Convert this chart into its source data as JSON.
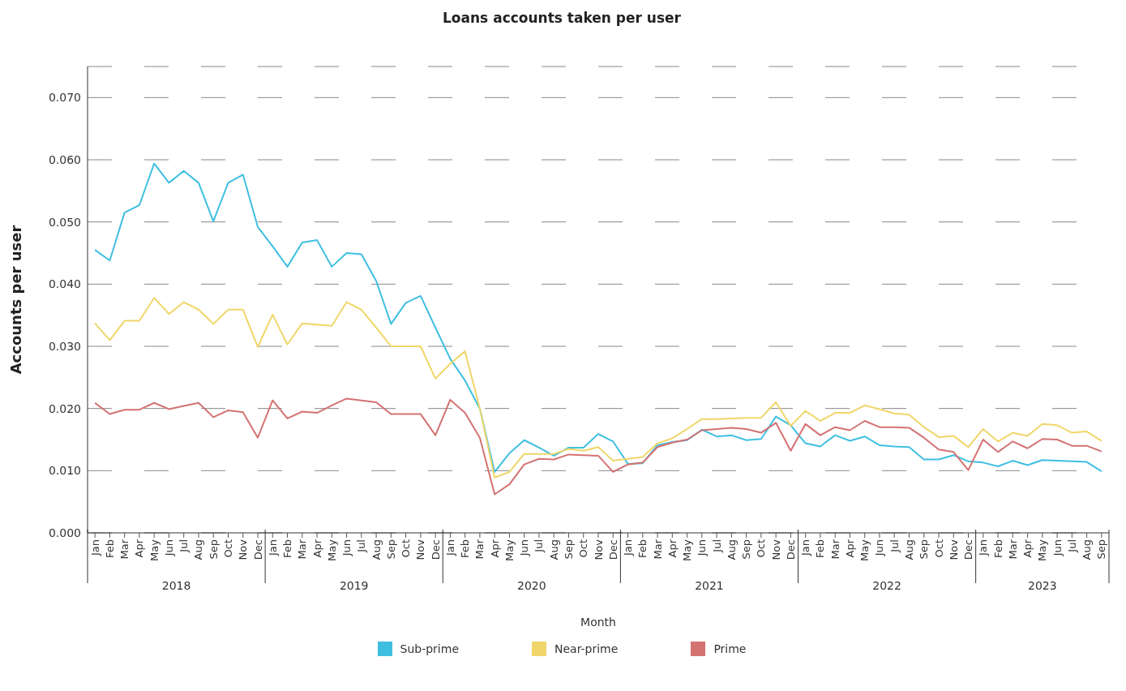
{
  "chart_data": {
    "type": "line",
    "title": "Loans accounts taken per user",
    "xlabel": "Month",
    "ylabel": "Accounts per user",
    "categories": [
      "Jan",
      "Feb",
      "Mar",
      "Apr",
      "May",
      "Jun",
      "Jul",
      "Aug",
      "Sep",
      "Oct",
      "Nov",
      "Dec",
      "Jan",
      "Feb",
      "Mar",
      "Apr",
      "May",
      "Jun",
      "Jul",
      "Aug",
      "Sep",
      "Oct",
      "Nov",
      "Dec",
      "Jan",
      "Feb",
      "Mar",
      "Apr",
      "May",
      "Jun",
      "Jul",
      "Aug",
      "Sep",
      "Oct",
      "Nov",
      "Dec",
      "Jan",
      "Feb",
      "Mar",
      "Apr",
      "May",
      "Jun",
      "Jul",
      "Aug",
      "Sep",
      "Oct",
      "Nov",
      "Dec",
      "Jan",
      "Feb",
      "Mar",
      "Apr",
      "May",
      "Jun",
      "Jul",
      "Aug",
      "Sep",
      "Oct",
      "Nov",
      "Dec",
      "Jan",
      "Feb",
      "Mar",
      "Apr",
      "May",
      "Jun",
      "Jul",
      "Aug",
      "Sep"
    ],
    "annotations": [
      "2018",
      "2019",
      "2020",
      "2021",
      "2022",
      "2023"
    ],
    "series": [
      {
        "name": "Sub-prime",
        "color": "#3fbfe0",
        "values": [
          0.0455,
          0.0438,
          0.0515,
          0.0527,
          0.0594,
          0.0563,
          0.0582,
          0.0563,
          0.0501,
          0.0563,
          0.0576,
          0.0492,
          0.0461,
          0.0428,
          0.0467,
          0.0471,
          0.0428,
          0.045,
          0.0448,
          0.0405,
          0.0336,
          0.037,
          0.0381,
          0.033,
          0.028,
          0.0245,
          0.02,
          0.0098,
          0.0128,
          0.0149,
          0.0137,
          0.0124,
          0.0137,
          0.0137,
          0.0159,
          0.0147,
          0.0111,
          0.0112,
          0.0141,
          0.0146,
          0.0149,
          0.0166,
          0.0155,
          0.0157,
          0.0149,
          0.0151,
          0.0187,
          0.0173,
          0.0144,
          0.0139,
          0.0157,
          0.0148,
          0.0155,
          0.0141,
          0.0139,
          0.0138,
          0.0118,
          0.0118,
          0.0125,
          0.0115,
          0.0113,
          0.0107,
          0.0116,
          0.0109,
          0.0117,
          0.0116,
          0.0115,
          0.0114,
          0.0099
        ]
      },
      {
        "name": "Near-prime",
        "color": "#f0d66a",
        "values": [
          0.0337,
          0.031,
          0.0341,
          0.0341,
          0.0378,
          0.0352,
          0.0371,
          0.0359,
          0.0336,
          0.0359,
          0.0359,
          0.0299,
          0.0351,
          0.0303,
          0.0337,
          0.0335,
          0.0333,
          0.0371,
          0.0359,
          0.033,
          0.03,
          0.03,
          0.03,
          0.0248,
          0.0272,
          0.0292,
          0.02,
          0.0089,
          0.0098,
          0.0127,
          0.0127,
          0.0127,
          0.0135,
          0.0132,
          0.0138,
          0.0116,
          0.0119,
          0.0122,
          0.0144,
          0.0152,
          0.0167,
          0.0183,
          0.0183,
          0.0184,
          0.0185,
          0.0185,
          0.021,
          0.0172,
          0.0196,
          0.018,
          0.0193,
          0.0193,
          0.0205,
          0.0199,
          0.0192,
          0.019,
          0.017,
          0.0154,
          0.0156,
          0.0138,
          0.0167,
          0.0147,
          0.0161,
          0.0156,
          0.0175,
          0.0173,
          0.0161,
          0.0163,
          0.0148
        ]
      },
      {
        "name": "Prime",
        "color": "#d47272",
        "values": [
          0.0209,
          0.0191,
          0.0198,
          0.0198,
          0.0209,
          0.0199,
          0.0204,
          0.0209,
          0.0186,
          0.0197,
          0.0194,
          0.0153,
          0.0213,
          0.0184,
          0.0195,
          0.0193,
          0.0205,
          0.0216,
          0.0213,
          0.021,
          0.0191,
          0.0191,
          0.0191,
          0.0157,
          0.0214,
          0.0193,
          0.0153,
          0.0062,
          0.0078,
          0.011,
          0.0119,
          0.0118,
          0.0126,
          0.0125,
          0.0124,
          0.0098,
          0.011,
          0.0113,
          0.0138,
          0.0145,
          0.015,
          0.0165,
          0.0167,
          0.0169,
          0.0167,
          0.0161,
          0.0177,
          0.0132,
          0.0175,
          0.0157,
          0.017,
          0.0165,
          0.018,
          0.017,
          0.017,
          0.0169,
          0.0153,
          0.0134,
          0.013,
          0.0101,
          0.015,
          0.013,
          0.0147,
          0.0136,
          0.0151,
          0.015,
          0.014,
          0.014,
          0.0131
        ]
      }
    ],
    "ylim": [
      0,
      0.075
    ],
    "yticks": [
      {
        "value": 0,
        "label": "0.000"
      },
      {
        "value": 0.01,
        "label": "0.010"
      },
      {
        "value": 0.02,
        "label": "0.020"
      },
      {
        "value": 0.03,
        "label": "0.030"
      },
      {
        "value": 0.04,
        "label": "0.040"
      },
      {
        "value": 0.05,
        "label": "0.050"
      },
      {
        "value": 0.06,
        "label": "0.060"
      },
      {
        "value": 0.07,
        "label": "0.070"
      }
    ],
    "grid": "y",
    "legend": "bottom",
    "marker": "none",
    "line_style": "solid"
  }
}
